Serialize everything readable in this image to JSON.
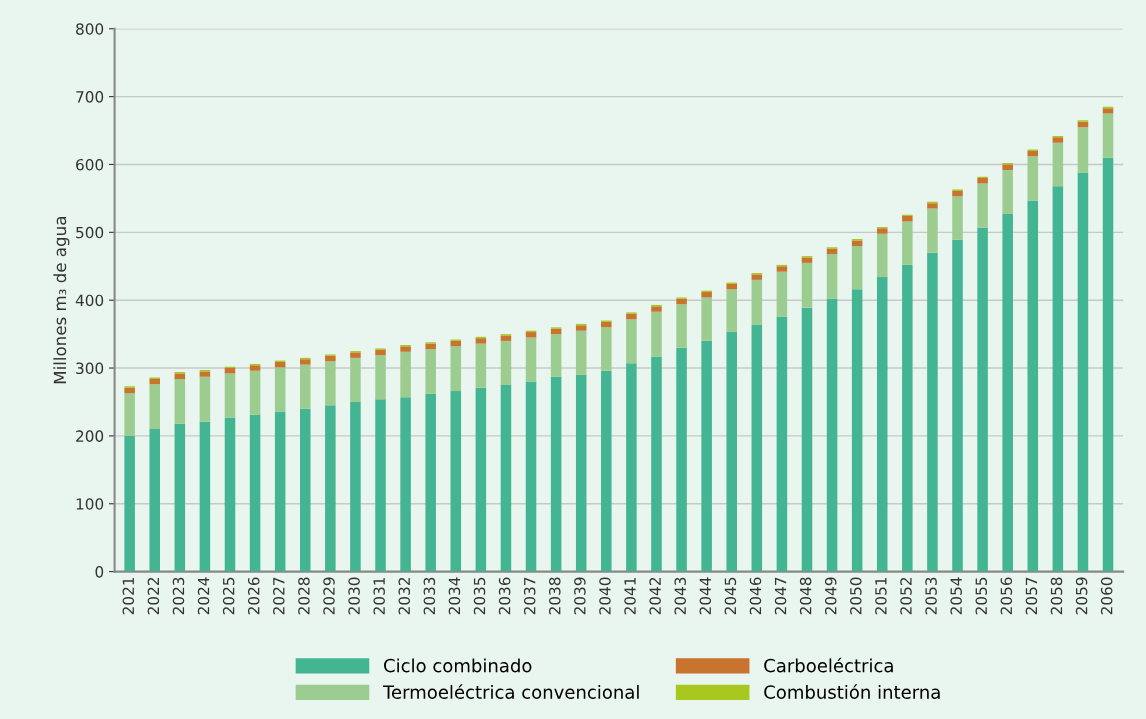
{
  "chart_data": {
    "type": "bar",
    "stacked": true,
    "ylabel": "Millones m₃ de agua",
    "categories": [
      "2021",
      "2022",
      "2023",
      "2024",
      "2025",
      "2026",
      "2027",
      "2028",
      "2029",
      "2030",
      "2031",
      "2032",
      "2033",
      "2034",
      "2035",
      "2036",
      "2037",
      "2038",
      "2039",
      "2040",
      "2041",
      "2042",
      "2043",
      "2044",
      "2045",
      "2046",
      "2047",
      "2048",
      "2049",
      "2050",
      "2051",
      "2052",
      "2053",
      "2054",
      "2055",
      "2056",
      "2057",
      "2058",
      "2059",
      "2060"
    ],
    "series": [
      {
        "name": "Ciclo combinado",
        "color": "#44b592",
        "values": [
          200,
          210,
          218,
          221,
          227,
          231,
          236,
          240,
          245,
          250,
          254,
          257,
          262,
          266,
          271,
          275,
          280,
          287,
          290,
          296,
          307,
          317,
          330,
          340,
          353,
          364,
          376,
          389,
          402,
          416,
          434,
          452,
          470,
          489,
          507,
          527,
          547,
          568,
          588,
          610
        ]
      },
      {
        "name": "Termoeléctrica convencional",
        "color": "#9ccc8f",
        "values": [
          63,
          66,
          66,
          66,
          65,
          65,
          65,
          65,
          65,
          65,
          65,
          67,
          66,
          66,
          65,
          65,
          65,
          63,
          65,
          64,
          65,
          66,
          64,
          64,
          63,
          66,
          66,
          66,
          66,
          64,
          64,
          64,
          65,
          64,
          65,
          65,
          65,
          64,
          67,
          65
        ]
      },
      {
        "name": "Carboeléctrica",
        "color": "#c8732e",
        "values": [
          8,
          8,
          8,
          8,
          8,
          8,
          8,
          8,
          8,
          8,
          8,
          8,
          8,
          8,
          8,
          8,
          8,
          8,
          8,
          8,
          8,
          8,
          8,
          8,
          8,
          8,
          8,
          8,
          8,
          8,
          8,
          8,
          8,
          8,
          8,
          8,
          8,
          8,
          8,
          8
        ]
      },
      {
        "name": "Combustión interna",
        "color": "#a8c820",
        "values": [
          2,
          2,
          2,
          2,
          2,
          2,
          2,
          2,
          2,
          2,
          2,
          2,
          2,
          2,
          2,
          2,
          2,
          2,
          2,
          2,
          2,
          2,
          2,
          2,
          2,
          2,
          2,
          2,
          2,
          2,
          2,
          2,
          2,
          2,
          2,
          2,
          2,
          2,
          2,
          2
        ]
      }
    ],
    "ylim": [
      0,
      800
    ],
    "yticks": [
      0,
      100,
      200,
      300,
      400,
      500,
      600,
      700,
      800
    ],
    "grid": "y",
    "legend": "bottom"
  }
}
